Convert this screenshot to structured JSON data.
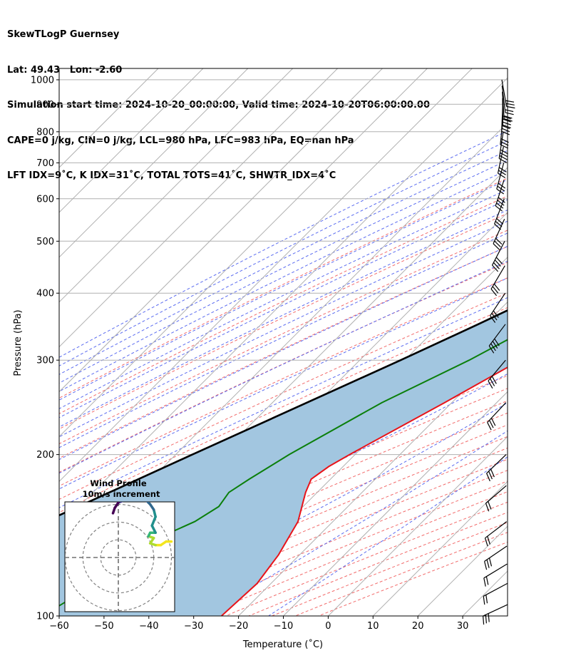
{
  "header": {
    "line1": "SkewTLogP Guernsey",
    "line2": "Lat: 49.43   Lon: -2.60",
    "line3": "Simulation start time: 2024-10-20_00:00:00, Valid time: 2024-10-20T06:00:00.00",
    "line4": "CAPE=0 j/kg, CIN=0 j/kg, LCL=980 hPa, LFC=983 hPa, EQ=nan hPa",
    "line5": "LFT IDX=9˚C, K IDX=31˚C, TOTAL TOTS=41˚C, SHWTR_IDX=4˚C"
  },
  "chart_data": {
    "type": "line",
    "subtype": "skew-T log-P diagram",
    "xlabel": "Temperature (˚C)",
    "ylabel": "Pressure (hPa)",
    "xlim": [
      -60,
      40
    ],
    "ylim": [
      1050,
      100
    ],
    "y_scale": "log",
    "x_ticks": [
      "−60",
      "−50",
      "−40",
      "−30",
      "−20",
      "−10",
      "0",
      "10",
      "20",
      "30"
    ],
    "x_tick_values": [
      -60,
      -50,
      -40,
      -30,
      -20,
      -10,
      0,
      10,
      20,
      30
    ],
    "y_ticks": [
      "100",
      "200",
      "300",
      "400",
      "500",
      "600",
      "700",
      "800",
      "900",
      "1000"
    ],
    "y_tick_values": [
      100,
      200,
      300,
      400,
      500,
      600,
      700,
      800,
      900,
      1000
    ],
    "grid": true,
    "series": [
      {
        "role": "temperature",
        "color": "#e8141a",
        "p": [
          1000,
          975,
          950,
          925,
          900,
          850,
          800,
          750,
          700,
          650,
          600,
          550,
          500,
          450,
          400,
          350,
          300,
          250,
          200,
          190,
          180,
          170,
          150,
          130,
          115,
          100
        ],
        "t": [
          15,
          15.7,
          16,
          15.8,
          15.3,
          14.5,
          13.7,
          12.4,
          10.8,
          9,
          6.9,
          4.7,
          2.2,
          -0.8,
          -4.4,
          -8.8,
          -14.2,
          -21.6,
          -31.2,
          -33.2,
          -34.3,
          -32.6,
          -27.8,
          -24.7,
          -23.1,
          -23.8
        ]
      },
      {
        "role": "dewpoint",
        "color": "#0b7f0b",
        "p": [
          1000,
          975,
          950,
          925,
          900,
          850,
          800,
          750,
          700,
          650,
          600,
          550,
          500,
          450,
          400,
          350,
          300,
          250,
          200,
          180,
          170,
          160,
          150,
          140,
          130,
          120,
          100
        ],
        "t": [
          14,
          14.4,
          14.6,
          14.5,
          14.3,
          13.7,
          12.8,
          11.5,
          9.8,
          7.6,
          3.8,
          0.6,
          -3.1,
          -7.9,
          -12.8,
          -18.6,
          -25.6,
          -35.6,
          -44.7,
          -48.1,
          -49.7,
          -48.8,
          -50.8,
          -55.2,
          -57.3,
          -57.7,
          -63.7
        ]
      },
      {
        "role": "parcel profile",
        "color": "#000000",
        "p": [
          1000,
          980,
          950,
          900,
          850,
          800,
          750,
          700,
          650,
          600,
          550,
          500,
          450,
          400,
          350,
          300,
          250,
          200,
          150,
          100
        ],
        "t": [
          16,
          14.2,
          13.3,
          11.6,
          9.8,
          7.7,
          5.4,
          2.9,
          0,
          -3.3,
          -7.3,
          -11.9,
          -17.4,
          -23.9,
          -31.6,
          -40.9,
          -52.3,
          -66.3,
          -84.1,
          -108.2
        ]
      }
    ],
    "shading": {
      "between": [
        "parcel profile",
        "temperature"
      ],
      "color": "#a2c6e0"
    },
    "wind_barbs_hpa": [
      1000,
      975,
      950,
      925,
      900,
      850,
      800,
      750,
      700,
      650,
      600,
      550,
      500,
      450,
      400,
      350,
      300,
      250,
      200,
      175,
      150,
      135,
      125,
      115,
      105
    ],
    "hodograph": {
      "title": "Wind Profile",
      "subtitle": "10m/s increment",
      "ring_increment_ms": 10,
      "rings": [
        1,
        2,
        3
      ],
      "xlim": [
        -31,
        31
      ],
      "ylim": [
        -31,
        31
      ],
      "colormap": [
        "#f3e51e",
        "#aedc30",
        "#35b779",
        "#21908c",
        "#31688e",
        "#443a83",
        "#440154"
      ],
      "u": [
        30,
        27,
        24,
        21,
        18,
        20,
        17,
        18,
        21,
        19,
        21,
        20,
        18,
        16,
        11,
        5,
        0,
        -2,
        -3
      ],
      "v": [
        9,
        9,
        7,
        7,
        8,
        11,
        12,
        14,
        14,
        18,
        23,
        27,
        30,
        32,
        33,
        33,
        31,
        28,
        25
      ]
    }
  }
}
